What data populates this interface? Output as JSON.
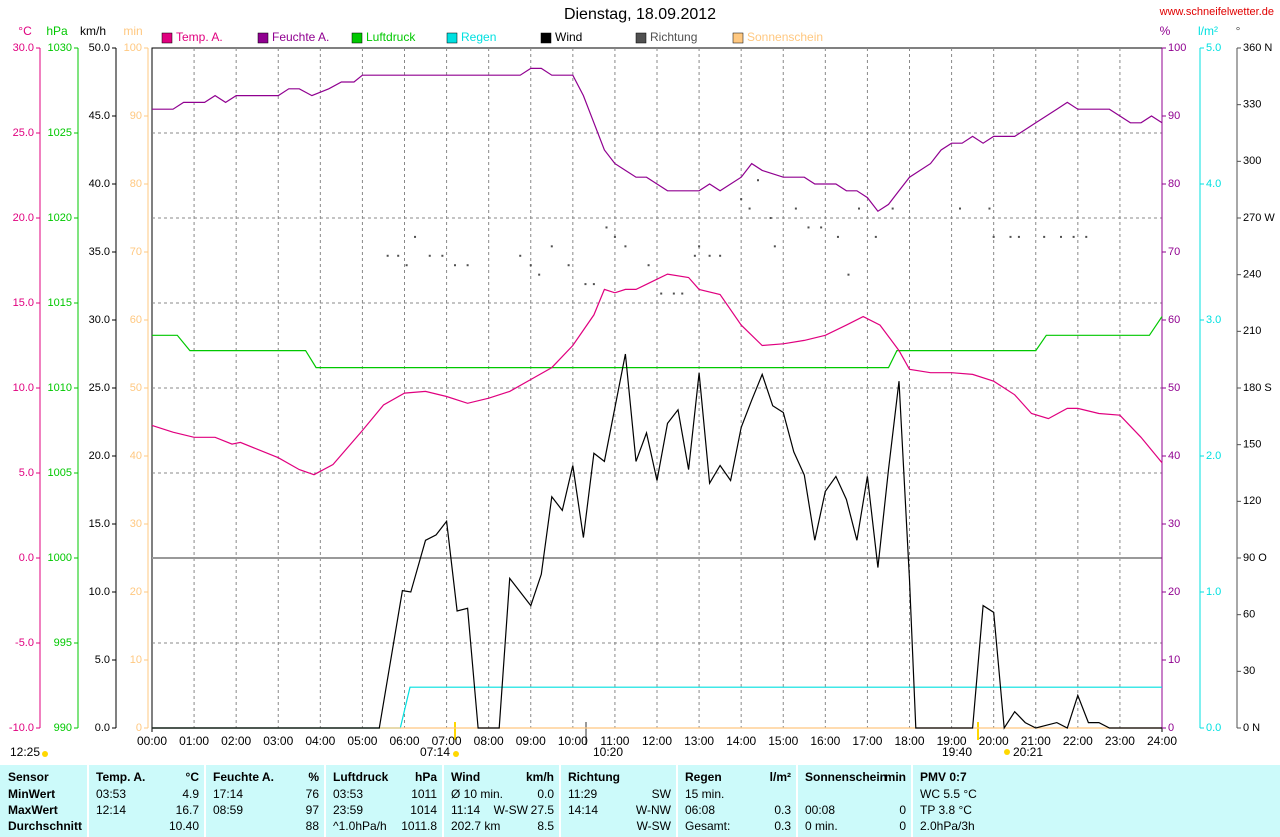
{
  "chart_data": {
    "type": "line",
    "title": "Dienstag, 18.09.2012",
    "source": "www.schneifelwetter.de",
    "annotations": [
      "12:25",
      "07:14",
      "10:20",
      "19:40",
      "20:21"
    ],
    "grid": true,
    "xlim": [
      0,
      24
    ],
    "xticks": [
      {
        "value": 0,
        "label": "00:00"
      },
      {
        "value": 1,
        "label": "01:00"
      },
      {
        "value": 2,
        "label": "02:00"
      },
      {
        "value": 3,
        "label": "03:00"
      },
      {
        "value": 4,
        "label": "04:00"
      },
      {
        "value": 5,
        "label": "05:00"
      },
      {
        "value": 6,
        "label": "06:00"
      },
      {
        "value": 7,
        "label": "07:00"
      },
      {
        "value": 8,
        "label": "08:00"
      },
      {
        "value": 9,
        "label": "09:00"
      },
      {
        "value": 10,
        "label": "10:00"
      },
      {
        "value": 11,
        "label": "11:00"
      },
      {
        "value": 12,
        "label": "12:00"
      },
      {
        "value": 13,
        "label": "13:00"
      },
      {
        "value": 14,
        "label": "14:00"
      },
      {
        "value": 15,
        "label": "15:00"
      },
      {
        "value": 16,
        "label": "16:00"
      },
      {
        "value": 17,
        "label": "17:00"
      },
      {
        "value": 18,
        "label": "18:00"
      },
      {
        "value": 19,
        "label": "19:00"
      },
      {
        "value": 20,
        "label": "20:00"
      },
      {
        "value": 21,
        "label": "21:00"
      },
      {
        "value": 22,
        "label": "22:00"
      },
      {
        "value": 23,
        "label": "23:00"
      },
      {
        "value": 24,
        "label": "24:00"
      }
    ],
    "series": [
      {
        "name": "Temp. A.",
        "unit": "°C",
        "color": "#e0007f",
        "type": "line",
        "ylim": [
          -10,
          30
        ],
        "yticks": [
          {
            "value": -10,
            "label": "-10.0"
          },
          {
            "value": -5,
            "label": "-5.0"
          },
          {
            "value": 0,
            "label": "0.0"
          },
          {
            "value": 5,
            "label": "5.0"
          },
          {
            "value": 10,
            "label": "10.0"
          },
          {
            "value": 15,
            "label": "15.0"
          },
          {
            "value": 20,
            "label": "20.0"
          },
          {
            "value": 25,
            "label": "25.0"
          },
          {
            "value": 30,
            "label": "30.0"
          }
        ],
        "x": [
          0,
          0.5,
          1,
          1.5,
          1.9,
          2.1,
          2.5,
          3,
          3.5,
          3.85,
          4.3,
          5,
          5.5,
          6,
          6.5,
          7,
          7.5,
          8,
          8.5,
          9,
          9.5,
          10,
          10.5,
          10.75,
          11,
          11.25,
          11.5,
          11.75,
          12,
          12.25,
          12.75,
          13,
          13.5,
          14,
          14.5,
          15,
          15.5,
          16,
          16.5,
          16.9,
          17.3,
          17.75,
          18,
          18.5,
          19,
          19.5,
          20,
          20.5,
          20.9,
          21.3,
          21.75,
          22,
          22.5,
          23,
          23.5,
          24
        ],
        "values": [
          7.8,
          7.4,
          7.1,
          7.1,
          6.7,
          6.8,
          6.4,
          5.9,
          5.2,
          4.9,
          5.5,
          7.5,
          9.0,
          9.7,
          9.8,
          9.5,
          9.1,
          9.4,
          9.8,
          10.5,
          11.2,
          12.5,
          14.3,
          15.8,
          15.6,
          15.8,
          15.8,
          16.1,
          16.4,
          16.7,
          16.5,
          15.8,
          15.5,
          13.7,
          12.5,
          12.6,
          12.8,
          13.1,
          13.7,
          14.2,
          13.7,
          12.2,
          11.1,
          10.9,
          10.9,
          10.8,
          10.4,
          9.6,
          8.5,
          8.2,
          8.8,
          8.8,
          8.5,
          8.4,
          7.1,
          5.6
        ]
      },
      {
        "name": "Feuchte A.",
        "unit": "%",
        "color": "#900090",
        "type": "line",
        "ylim": [
          0,
          100
        ],
        "yticks": [
          0,
          10,
          20,
          30,
          40,
          50,
          60,
          70,
          80,
          90,
          100
        ],
        "x": [
          0,
          0.5,
          0.75,
          1.25,
          1.5,
          1.75,
          2,
          3,
          3.25,
          3.5,
          3.8,
          4.2,
          4.5,
          4.8,
          5,
          8.75,
          9,
          9.25,
          9.5,
          10,
          10.25,
          10.5,
          10.75,
          11,
          11.25,
          11.5,
          11.75,
          12,
          12.25,
          13,
          13.25,
          13.5,
          14,
          14.25,
          14.5,
          15,
          15.5,
          15.75,
          16.25,
          16.5,
          16.75,
          17,
          17.25,
          17.5,
          17.75,
          18,
          18.5,
          18.75,
          19,
          19.25,
          19.5,
          19.75,
          20,
          20.5,
          21,
          21.5,
          21.75,
          22,
          22.75,
          23,
          23.25,
          23.5,
          23.75,
          24
        ],
        "values": [
          91,
          91,
          92,
          92,
          93,
          92,
          93,
          93,
          94,
          94,
          93,
          94,
          95,
          95,
          96,
          96,
          97,
          97,
          96,
          96,
          93,
          89,
          85,
          83,
          82,
          81,
          81,
          80,
          79,
          79,
          80,
          79,
          81,
          83,
          82,
          81,
          81,
          80,
          80,
          79,
          79,
          78,
          76,
          77,
          79,
          81,
          83,
          85,
          86,
          86,
          87,
          86,
          87,
          87,
          89,
          91,
          92,
          91,
          91,
          90,
          89,
          89,
          90,
          89
        ]
      },
      {
        "name": "Luftdruck",
        "unit": "hPa",
        "color": "#00c800",
        "type": "line",
        "ylim": [
          990,
          1030
        ],
        "yticks": [
          990,
          995,
          1000,
          1005,
          1010,
          1015,
          1020,
          1025,
          1030
        ],
        "x": [
          0,
          0.6,
          0.9,
          3.65,
          3.9,
          17.5,
          17.7,
          21,
          21.25,
          23.7,
          24
        ],
        "values": [
          1013.1,
          1013.1,
          1012.2,
          1012.2,
          1011.2,
          1011.2,
          1012.2,
          1012.2,
          1013.1,
          1013.1,
          1014.2
        ]
      },
      {
        "name": "Regen",
        "unit": "l/m²",
        "color": "#00e0e0",
        "type": "line",
        "ylim": [
          0,
          5
        ],
        "yticks": [
          {
            "value": 0,
            "label": "0.0"
          },
          {
            "value": 1,
            "label": "1.0"
          },
          {
            "value": 2,
            "label": "2.0"
          },
          {
            "value": 3,
            "label": "3.0"
          },
          {
            "value": 4,
            "label": "4.0"
          },
          {
            "value": 5,
            "label": "5.0"
          }
        ],
        "x": [
          0,
          5.9,
          6.13,
          24
        ],
        "values": [
          0,
          0,
          0.3,
          0.3
        ]
      },
      {
        "name": "Wind",
        "unit": "km/h",
        "color": "#000000",
        "type": "line",
        "ylim": [
          0,
          50
        ],
        "yticks": [
          {
            "value": 0,
            "label": "0.0"
          },
          {
            "value": 5,
            "label": "5.0"
          },
          {
            "value": 10,
            "label": "10.0"
          },
          {
            "value": 15,
            "label": "15.0"
          },
          {
            "value": 20,
            "label": "20.0"
          },
          {
            "value": 25,
            "label": "25.0"
          },
          {
            "value": 30,
            "label": "30.0"
          },
          {
            "value": 35,
            "label": "35.0"
          },
          {
            "value": 40,
            "label": "40.0"
          },
          {
            "value": 45,
            "label": "45.0"
          },
          {
            "value": 50,
            "label": "50.0"
          }
        ],
        "x": [
          0,
          5.4,
          5.95,
          6.15,
          6.5,
          6.75,
          7,
          7.25,
          7.5,
          7.75,
          8.25,
          8.5,
          9,
          9.25,
          9.5,
          9.75,
          10,
          10.25,
          10.5,
          10.75,
          11.25,
          11.5,
          11.75,
          12,
          12.25,
          12.5,
          12.75,
          13,
          13.25,
          13.5,
          13.75,
          14,
          14.25,
          14.5,
          14.75,
          15,
          15.25,
          15.5,
          15.75,
          16,
          16.25,
          16.5,
          16.75,
          17,
          17.25,
          17.5,
          17.75,
          18,
          18.15,
          19.5,
          19.75,
          20,
          20.25,
          20.5,
          20.75,
          21,
          21.5,
          21.75,
          22,
          22.25,
          22.5,
          22.75,
          24
        ],
        "values": [
          0,
          0,
          10.1,
          10,
          13.8,
          14.2,
          15.2,
          8.6,
          8.8,
          0,
          0,
          11,
          9,
          11.3,
          17,
          16,
          19.3,
          14,
          20.2,
          19.6,
          27.5,
          19.6,
          21.7,
          18.2,
          22.4,
          23.4,
          19,
          26.1,
          18,
          19.3,
          18.2,
          22.1,
          24.1,
          26,
          23.7,
          23.2,
          20.3,
          18.6,
          13.8,
          17.4,
          18.5,
          16.8,
          13.8,
          18.5,
          11.8,
          19,
          25.5,
          10.9,
          0,
          0,
          9,
          8.5,
          0,
          1.2,
          0.4,
          0,
          0.4,
          0,
          2.4,
          0.4,
          0.4,
          0,
          0
        ]
      },
      {
        "name": "Richtung",
        "unit": "°",
        "color": "#505050",
        "type": "scatter",
        "ylim": [
          0,
          360
        ],
        "yticks": [
          {
            "value": 0,
            "label": "0 N"
          },
          30,
          60,
          {
            "value": 90,
            "label": "90 O"
          },
          120,
          150,
          {
            "value": 180,
            "label": "180 S"
          },
          210,
          240,
          {
            "value": 270,
            "label": "270 W"
          },
          300,
          330,
          {
            "value": 360,
            "label": "360 N"
          }
        ],
        "x": [
          5.6,
          5.85,
          6.05,
          6.25,
          6.6,
          6.9,
          7.2,
          7.5,
          8.75,
          9.0,
          9.2,
          9.5,
          9.9,
          10.3,
          10.5,
          10.8,
          11.0,
          11.25,
          11.8,
          12.1,
          12.4,
          12.6,
          12.9,
          13.0,
          13.25,
          13.5,
          14.0,
          14.2,
          14.4,
          14.7,
          14.8,
          15.3,
          15.6,
          15.9,
          16.3,
          16.55,
          16.8,
          17.2,
          17.6,
          19.2,
          19.9,
          20.0,
          20.4,
          20.6,
          21.2,
          21.6,
          21.9,
          22.2
        ],
        "values": [
          250,
          250,
          245,
          260,
          250,
          250,
          245,
          245,
          250,
          245,
          240,
          255,
          245,
          235,
          235,
          265,
          260,
          255,
          245,
          230,
          230,
          230,
          250,
          255,
          250,
          250,
          280,
          275,
          290,
          270,
          255,
          275,
          265,
          265,
          260,
          240,
          275,
          260,
          275,
          275,
          275,
          260,
          260,
          260,
          260,
          260,
          260,
          260
        ]
      },
      {
        "name": "Sonnenschein",
        "unit": "min",
        "color": "#ffc880",
        "type": "line",
        "ylim": [
          0,
          100
        ],
        "yticks": [
          0,
          10,
          20,
          30,
          40,
          50,
          60,
          70,
          80,
          90,
          100
        ],
        "x": [
          0,
          24
        ],
        "values": [
          0,
          0
        ]
      }
    ]
  },
  "stats": {
    "headers": [
      {
        "left": "Sensor"
      },
      {
        "left": "Temp. A.",
        "right": "°C"
      },
      {
        "left": "Feuchte A.",
        "right": "%"
      },
      {
        "left": "Luftdruck",
        "right": "hPa"
      },
      {
        "left": "Wind",
        "right": "km/h"
      },
      {
        "left": "Richtung"
      },
      {
        "left": "Regen",
        "right": "l/m²"
      },
      {
        "left": "Sonnenschein",
        "right": "min"
      },
      {
        "left": "PMV 0:7"
      }
    ],
    "rows": [
      {
        "label": "MinWert",
        "cells": [
          {
            "left": "03:53",
            "right": "4.9"
          },
          {
            "left": "17:14",
            "right": "76"
          },
          {
            "left": "03:53",
            "right": "1011"
          },
          {
            "left": "Ø 10 min.",
            "right": "0.0"
          },
          {
            "left": "11:29",
            "right": "SW"
          },
          {
            "left": "15 min."
          },
          {},
          {
            "left": "WC 5.5 °C"
          }
        ]
      },
      {
        "label": "MaxWert",
        "cells": [
          {
            "left": "12:14",
            "right": "16.7"
          },
          {
            "left": "08:59",
            "right": "97"
          },
          {
            "left": "23:59",
            "right": "1014"
          },
          {
            "left": "11:14",
            "mid": "W-SW",
            "right": "27.5"
          },
          {
            "left": "14:14",
            "right": "W-NW"
          },
          {
            "left": "06:08",
            "right": "0.3"
          },
          {
            "left": "00:08",
            "right": "0"
          },
          {
            "left": "TP 3.8 °C"
          }
        ]
      },
      {
        "label": "Durchschnitt",
        "cells": [
          {
            "right": "10.40"
          },
          {
            "right": "88"
          },
          {
            "left": "^1.0hPa/h",
            "right": "1011.8"
          },
          {
            "left": "202.7 km",
            "right": "8.5"
          },
          {
            "right": "W-SW"
          },
          {
            "left": "Gesamt:",
            "right": "0.3"
          },
          {
            "left": "0 min.",
            "right": "0"
          },
          {
            "left": "2.0hPa/3h"
          }
        ]
      }
    ]
  }
}
